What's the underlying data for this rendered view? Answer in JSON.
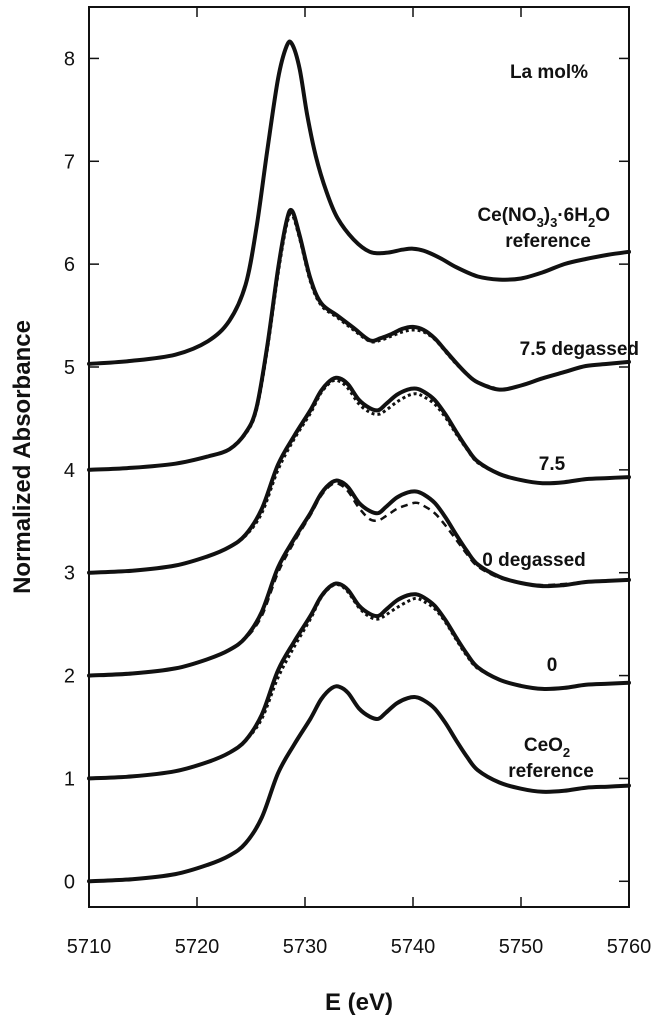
{
  "chart_data": {
    "type": "line",
    "xlabel": "E (eV)",
    "ylabel": "Normalized Absorbance",
    "xlim": [
      5710,
      5760
    ],
    "ylim": [
      -0.25,
      8.5
    ],
    "x_ticks": [
      "5710",
      "5720",
      "5730",
      "5740",
      "5750",
      "5760"
    ],
    "y_ticks": [
      "0",
      "1",
      "2",
      "3",
      "4",
      "5",
      "6",
      "7",
      "8"
    ],
    "legend_title": "La mol%",
    "grid": false,
    "series": [
      {
        "name": "CeO2 reference",
        "style": "solid",
        "x": [
          5710,
          5714,
          5718,
          5721,
          5723,
          5724.5,
          5726,
          5727.5,
          5729,
          5730.5,
          5731.5,
          5732.5,
          5733.2,
          5734,
          5735,
          5736,
          5736.8,
          5737.5,
          5738.5,
          5739.5,
          5740.3,
          5741,
          5742,
          5743,
          5744,
          5745,
          5746,
          5748,
          5750,
          5752,
          5754,
          5756,
          5758,
          5760
        ],
        "y": [
          0.0,
          0.02,
          0.07,
          0.16,
          0.25,
          0.37,
          0.62,
          1.05,
          1.33,
          1.58,
          1.77,
          1.88,
          1.89,
          1.83,
          1.68,
          1.6,
          1.58,
          1.64,
          1.73,
          1.78,
          1.79,
          1.76,
          1.68,
          1.54,
          1.37,
          1.21,
          1.08,
          0.96,
          0.9,
          0.87,
          0.88,
          0.91,
          0.92,
          0.93
        ]
      },
      {
        "name": "0",
        "style": "solid",
        "x": [
          5710,
          5714,
          5718,
          5721,
          5723,
          5724.5,
          5726,
          5727.5,
          5729,
          5730.5,
          5731.5,
          5732.5,
          5733.2,
          5734,
          5735,
          5736,
          5736.8,
          5737.5,
          5738.5,
          5739.5,
          5740.3,
          5741,
          5742,
          5743,
          5744,
          5745,
          5746,
          5748,
          5750,
          5752,
          5754,
          5756,
          5758,
          5760
        ],
        "y": [
          1.0,
          1.02,
          1.07,
          1.16,
          1.25,
          1.37,
          1.62,
          2.05,
          2.33,
          2.58,
          2.77,
          2.88,
          2.89,
          2.83,
          2.68,
          2.6,
          2.58,
          2.64,
          2.73,
          2.78,
          2.79,
          2.76,
          2.68,
          2.54,
          2.37,
          2.21,
          2.08,
          1.96,
          1.9,
          1.87,
          1.88,
          1.91,
          1.92,
          1.93
        ]
      },
      {
        "name": "0 degassed",
        "style": "solid",
        "x": [
          5710,
          5714,
          5718,
          5721,
          5723,
          5724.5,
          5726,
          5727.5,
          5729,
          5730.5,
          5731.5,
          5732.5,
          5733.2,
          5734,
          5735,
          5736,
          5736.8,
          5737.5,
          5738.5,
          5739.5,
          5740.3,
          5741,
          5742,
          5743,
          5744,
          5745,
          5746,
          5748,
          5750,
          5752,
          5754,
          5756,
          5758,
          5760
        ],
        "y": [
          2.0,
          2.02,
          2.07,
          2.16,
          2.25,
          2.37,
          2.62,
          3.05,
          3.33,
          3.58,
          3.77,
          3.88,
          3.89,
          3.83,
          3.68,
          3.6,
          3.58,
          3.64,
          3.73,
          3.78,
          3.79,
          3.76,
          3.68,
          3.54,
          3.37,
          3.21,
          3.08,
          2.96,
          2.9,
          2.87,
          2.88,
          2.91,
          2.92,
          2.93
        ]
      },
      {
        "name": "7.5",
        "style": "solid",
        "x": [
          5710,
          5714,
          5718,
          5721,
          5723,
          5724.5,
          5726,
          5727.5,
          5729,
          5730.5,
          5731.5,
          5732.5,
          5733.2,
          5734,
          5735,
          5736,
          5736.8,
          5737.5,
          5738.5,
          5739.5,
          5740.3,
          5741,
          5742,
          5743,
          5744,
          5745,
          5746,
          5748,
          5750,
          5752,
          5754,
          5756,
          5758,
          5760
        ],
        "y": [
          3.0,
          3.02,
          3.07,
          3.16,
          3.25,
          3.37,
          3.62,
          4.05,
          4.33,
          4.58,
          4.77,
          4.88,
          4.89,
          4.83,
          4.68,
          4.6,
          4.58,
          4.64,
          4.73,
          4.78,
          4.79,
          4.76,
          4.68,
          4.54,
          4.37,
          4.21,
          4.08,
          3.96,
          3.9,
          3.87,
          3.88,
          3.91,
          3.92,
          3.93
        ]
      },
      {
        "name": "7.5 degassed",
        "style": "solid",
        "x": [
          5710,
          5714,
          5718,
          5721,
          5723,
          5724.5,
          5725.5,
          5726.5,
          5727.5,
          5728.3,
          5728.8,
          5729.5,
          5730.5,
          5731.5,
          5733,
          5734.5,
          5736,
          5737,
          5738,
          5739,
          5740,
          5741,
          5742,
          5743,
          5744,
          5745,
          5746,
          5748,
          5750,
          5752,
          5754,
          5756,
          5758,
          5760
        ],
        "y": [
          4.0,
          4.02,
          4.06,
          4.13,
          4.2,
          4.36,
          4.6,
          5.2,
          5.95,
          6.42,
          6.52,
          6.28,
          5.86,
          5.62,
          5.5,
          5.38,
          5.26,
          5.28,
          5.32,
          5.37,
          5.39,
          5.36,
          5.28,
          5.16,
          5.04,
          4.93,
          4.85,
          4.78,
          4.82,
          4.89,
          4.95,
          5.01,
          5.03,
          5.05
        ]
      },
      {
        "name": "Ce(NO3)3·6H2O reference",
        "style": "solid",
        "x": [
          5710,
          5714,
          5718,
          5721,
          5723,
          5724.5,
          5725.5,
          5726.5,
          5727.5,
          5728.3,
          5728.8,
          5729.5,
          5730.2,
          5731,
          5732,
          5733,
          5734.5,
          5736,
          5737.5,
          5739,
          5740,
          5741,
          5742.5,
          5744,
          5746,
          5748,
          5750,
          5752,
          5754,
          5756,
          5758,
          5760
        ],
        "y": [
          5.03,
          5.06,
          5.12,
          5.25,
          5.45,
          5.8,
          6.35,
          7.1,
          7.8,
          8.12,
          8.14,
          7.9,
          7.45,
          7.05,
          6.7,
          6.45,
          6.24,
          6.12,
          6.11,
          6.14,
          6.15,
          6.13,
          6.06,
          5.97,
          5.88,
          5.85,
          5.86,
          5.92,
          6.0,
          6.05,
          6.09,
          6.12
        ]
      },
      {
        "name": "0 (dotted)",
        "style": "dotted",
        "x": [
          5723,
          5724.5,
          5726,
          5727.5,
          5729,
          5730.5,
          5731.5,
          5732.5,
          5733.2,
          5734,
          5735,
          5736,
          5736.8,
          5737.5,
          5738.5,
          5739.5,
          5740.3,
          5741,
          5742,
          5743,
          5744,
          5745,
          5746,
          5748
        ],
        "y": [
          1.25,
          1.37,
          1.58,
          1.98,
          2.28,
          2.55,
          2.76,
          2.87,
          2.88,
          2.81,
          2.66,
          2.57,
          2.55,
          2.59,
          2.66,
          2.72,
          2.75,
          2.72,
          2.65,
          2.52,
          2.35,
          2.19,
          2.07,
          1.96
        ]
      },
      {
        "name": "0 degassed (dashed)",
        "style": "dashed",
        "x": [
          5723,
          5724.5,
          5726,
          5727.5,
          5729,
          5730.5,
          5731.5,
          5732.5,
          5733.2,
          5734,
          5735,
          5736,
          5736.8,
          5737.5,
          5738.5,
          5739.5,
          5740.3,
          5741,
          5742,
          5743,
          5744,
          5745,
          5746,
          5748,
          5750,
          5752,
          5754,
          5756,
          5758,
          5760
        ],
        "y": [
          2.25,
          2.36,
          2.58,
          3.0,
          3.3,
          3.56,
          3.75,
          3.86,
          3.86,
          3.79,
          3.63,
          3.52,
          3.51,
          3.55,
          3.62,
          3.66,
          3.68,
          3.65,
          3.58,
          3.46,
          3.32,
          3.18,
          3.06,
          2.95,
          2.9,
          2.88,
          2.89,
          2.91,
          2.92,
          2.93
        ]
      },
      {
        "name": "7.5 (dotted)",
        "style": "dotted",
        "x": [
          5723,
          5724.5,
          5726,
          5727.5,
          5729,
          5730.5,
          5731.5,
          5732.5,
          5733.2,
          5734,
          5735,
          5736,
          5736.8,
          5737.5,
          5738.5,
          5739.5,
          5740.3,
          5741,
          5742,
          5743,
          5744,
          5745,
          5746,
          5748
        ],
        "y": [
          3.25,
          3.36,
          3.58,
          4.0,
          4.3,
          4.55,
          4.75,
          4.86,
          4.86,
          4.79,
          4.64,
          4.56,
          4.54,
          4.58,
          4.66,
          4.72,
          4.74,
          4.71,
          4.64,
          4.51,
          4.35,
          4.2,
          4.07,
          3.96
        ]
      },
      {
        "name": "7.5 degassed (dotted)",
        "style": "dotted",
        "x": [
          5723,
          5724.5,
          5725.5,
          5726.5,
          5727.5,
          5728.3,
          5728.8,
          5729.5,
          5730.5,
          5731.5,
          5733,
          5734.5,
          5736,
          5737,
          5738,
          5739,
          5740,
          5741,
          5742,
          5743,
          5744,
          5745,
          5746,
          5748
        ],
        "y": [
          4.2,
          4.35,
          4.58,
          5.16,
          5.9,
          6.38,
          6.48,
          6.25,
          5.83,
          5.6,
          5.48,
          5.36,
          5.25,
          5.26,
          5.3,
          5.34,
          5.36,
          5.34,
          5.27,
          5.15,
          5.03,
          4.93,
          4.85,
          4.78
        ]
      }
    ],
    "annotations": [
      {
        "text": "La mol%",
        "x": 5747,
        "y": 7.9
      },
      {
        "text": "Ce(NO3)3·6H2O",
        "x": 5746,
        "y": 6.45
      },
      {
        "text": "reference",
        "x": 5749,
        "y": 6.2
      },
      {
        "text": "7.5 degassed",
        "x": 5746,
        "y": 5.13
      },
      {
        "text": "7.5",
        "x": 5754,
        "y": 4.08
      },
      {
        "text": "0 degassed",
        "x": 5747.5,
        "y": 3.07
      },
      {
        "text": "0",
        "x": 5755.5,
        "y": 2.08
      },
      {
        "text": "CeO2",
        "x": 5751,
        "y": 1.28
      },
      {
        "text": "reference",
        "x": 5750,
        "y": 1.04
      }
    ]
  }
}
